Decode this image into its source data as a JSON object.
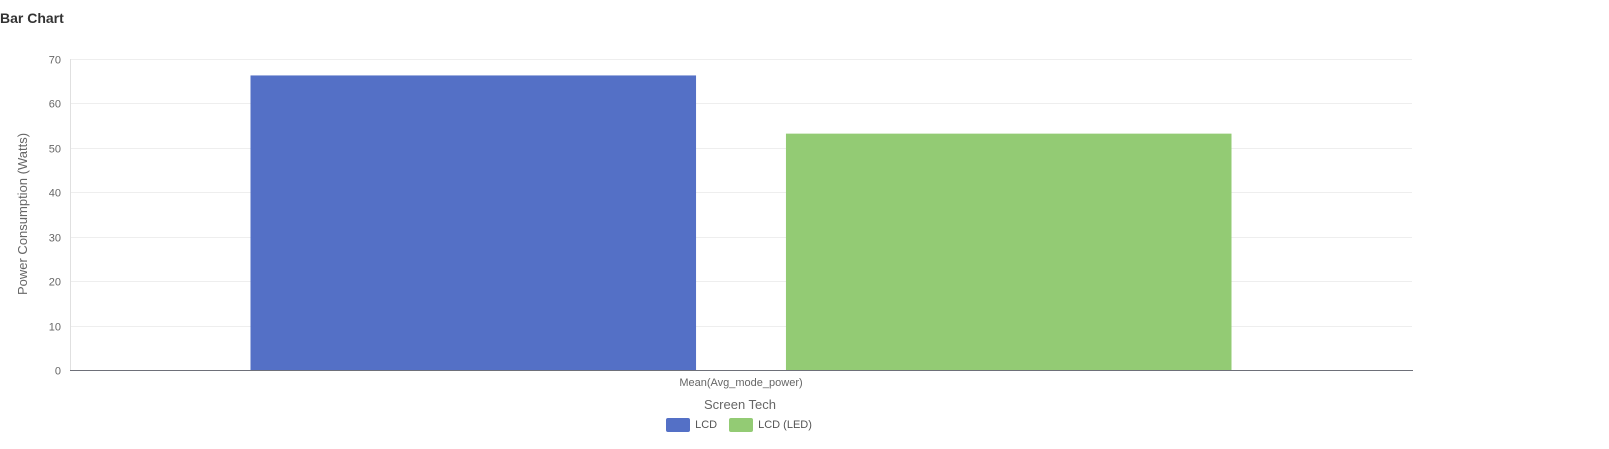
{
  "page_title": "Bar Chart",
  "chart_data": {
    "type": "bar",
    "categories": [
      "Mean(Avg_mode_power)"
    ],
    "series": [
      {
        "name": "LCD",
        "values": [
          66.3
        ],
        "color": "#5470c6"
      },
      {
        "name": "LCD (LED)",
        "values": [
          53.2
        ],
        "color": "#93cb74"
      }
    ],
    "xlabel": "Screen Tech",
    "ylabel": "Power Consumption (Watts)",
    "ylim": [
      0,
      70
    ],
    "yticks": [
      0,
      10,
      20,
      30,
      40,
      50,
      60,
      70
    ],
    "grid": true,
    "legend_position": "bottom"
  }
}
